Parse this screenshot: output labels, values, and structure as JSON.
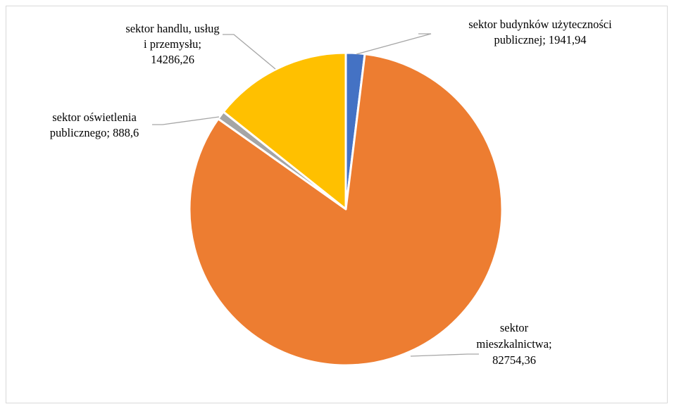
{
  "chart_data": {
    "type": "pie",
    "title": "",
    "slices": [
      {
        "name": "sektor budynków użyteczności publicznej",
        "value": 1941.94,
        "value_label": "1941,94",
        "color": "#4472C4",
        "label_lines": [
          "sektor budynków użyteczności",
          "publicznej; 1941,94"
        ]
      },
      {
        "name": "sektor mieszkalnictwa",
        "value": 82754.36,
        "value_label": "82754,36",
        "color": "#ED7D31",
        "label_lines": [
          "sektor",
          "mieszkalnictwa;",
          "82754,36"
        ]
      },
      {
        "name": "sektor oświetlenia publicznego",
        "value": 888.6,
        "value_label": "888,6",
        "color": "#A5A5A5",
        "label_lines": [
          "sektor oświetlenia",
          "publicznego; 888,6"
        ]
      },
      {
        "name": "sektor handlu, usług i przemysłu",
        "value": 14286.26,
        "value_label": "14286,26",
        "color": "#FFC000",
        "label_lines": [
          "sektor handlu, usług",
          "i przemysłu;",
          "14286,26"
        ]
      }
    ],
    "start_angle": "12 o'clock, clockwise",
    "legend": "none",
    "data_labels": "outside with leader lines"
  }
}
